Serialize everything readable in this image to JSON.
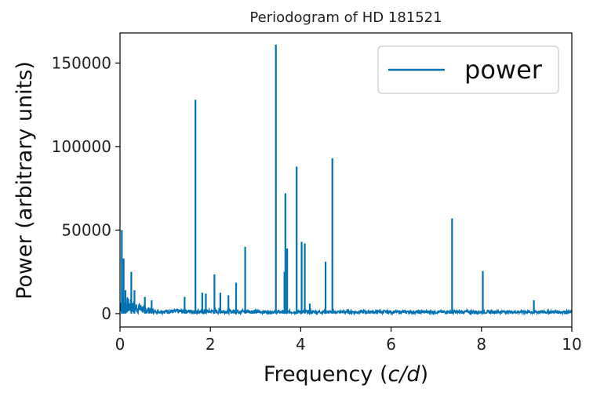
{
  "chart_data": {
    "type": "line",
    "title": "Periodogram of HD 181521",
    "xlabel": "Frequency (c/d)",
    "ylabel": "Power (arbitrary units)",
    "xlim": [
      0,
      10
    ],
    "ylim": [
      -8000,
      168000
    ],
    "xticks": [
      0,
      2,
      4,
      6,
      8,
      10
    ],
    "yticks": [
      0,
      50000,
      100000,
      150000
    ],
    "xtick_labels": [
      "0",
      "2",
      "4",
      "6",
      "8",
      "10"
    ],
    "ytick_labels": [
      "0",
      "50000",
      "100000",
      "150000"
    ],
    "grid": false,
    "legend_position": "top-right",
    "series": [
      {
        "name": "power",
        "color": "#0072b2",
        "noise_level": 2000,
        "peaks": [
          {
            "x": 0.04,
            "y": 50000
          },
          {
            "x": 0.08,
            "y": 33000
          },
          {
            "x": 0.12,
            "y": 14000
          },
          {
            "x": 0.25,
            "y": 25000
          },
          {
            "x": 0.32,
            "y": 14000
          },
          {
            "x": 0.55,
            "y": 10000
          },
          {
            "x": 0.7,
            "y": 8000
          },
          {
            "x": 1.43,
            "y": 10000
          },
          {
            "x": 1.67,
            "y": 128000
          },
          {
            "x": 1.82,
            "y": 12500
          },
          {
            "x": 1.9,
            "y": 12000
          },
          {
            "x": 2.09,
            "y": 23500
          },
          {
            "x": 2.22,
            "y": 12500
          },
          {
            "x": 2.4,
            "y": 11000
          },
          {
            "x": 2.57,
            "y": 18500
          },
          {
            "x": 2.77,
            "y": 40000
          },
          {
            "x": 3.45,
            "y": 161000
          },
          {
            "x": 3.64,
            "y": 25000
          },
          {
            "x": 3.66,
            "y": 72000
          },
          {
            "x": 3.7,
            "y": 39000
          },
          {
            "x": 3.91,
            "y": 88000
          },
          {
            "x": 4.02,
            "y": 43000
          },
          {
            "x": 4.09,
            "y": 42000
          },
          {
            "x": 4.2,
            "y": 6000
          },
          {
            "x": 4.55,
            "y": 31000
          },
          {
            "x": 4.7,
            "y": 93000
          },
          {
            "x": 7.35,
            "y": 57000
          },
          {
            "x": 8.03,
            "y": 25500
          },
          {
            "x": 9.16,
            "y": 8000
          }
        ]
      }
    ]
  }
}
